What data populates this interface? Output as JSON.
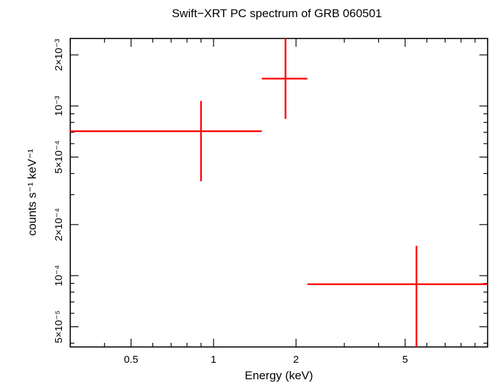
{
  "chart_data": {
    "type": "scatter",
    "title": "Swift−XRT PC spectrum of GRB 060501",
    "xlabel": "Energy (keV)",
    "ylabel": "counts s⁻¹ keV⁻¹",
    "x_scale": "log",
    "y_scale": "log",
    "xlim": [
      0.3,
      10
    ],
    "ylim": [
      3.8e-05,
      0.0025
    ],
    "grid": false,
    "x_ticks": [
      {
        "value": 0.5,
        "label": "0.5"
      },
      {
        "value": 1,
        "label": "1"
      },
      {
        "value": 2,
        "label": "2"
      },
      {
        "value": 5,
        "label": "5"
      }
    ],
    "y_ticks": [
      {
        "value": 5e-05,
        "label": "5×10⁻⁵"
      },
      {
        "value": 0.0001,
        "label": "10⁻⁴"
      },
      {
        "value": 0.0002,
        "label": "2×10⁻⁴"
      },
      {
        "value": 0.0005,
        "label": "5×10⁻⁴"
      },
      {
        "value": 0.001,
        "label": "10⁻³"
      },
      {
        "value": 0.002,
        "label": "2×10⁻³"
      }
    ],
    "series": [
      {
        "color": "#ff0000",
        "points": [
          {
            "x": 0.9,
            "x_lo": 0.3,
            "x_hi": 1.5,
            "y": 0.00071,
            "y_lo": 0.00036,
            "y_hi": 0.00107
          },
          {
            "x": 1.83,
            "x_lo": 1.5,
            "x_hi": 2.2,
            "y": 0.00145,
            "y_lo": 0.00084,
            "y_hi": 0.0025
          },
          {
            "x": 5.5,
            "x_lo": 2.2,
            "x_hi": 10,
            "y": 8.9e-05,
            "y_lo": 3.8e-05,
            "y_hi": 0.00015
          }
        ]
      }
    ]
  }
}
